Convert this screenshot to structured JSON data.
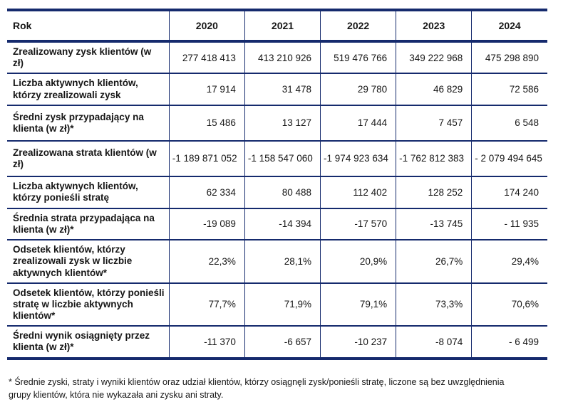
{
  "colors": {
    "table_border": "#152a6d",
    "text": "#161616",
    "background": "#ffffff"
  },
  "table": {
    "header": {
      "label": "Rok",
      "years": [
        "2020",
        "2021",
        "2022",
        "2023",
        "2024"
      ]
    },
    "rows": [
      {
        "label": "Zrealizowany zysk klientów (w zł)",
        "values": [
          "277 418 413",
          "413 210 926",
          "519 476 766",
          "349 222 968",
          "475 298 890"
        ]
      },
      {
        "label": "Liczba aktywnych klientów, którzy zrealizowali zysk",
        "values": [
          "17 914",
          "31 478",
          "29 780",
          "46 829",
          "72 586"
        ]
      },
      {
        "label": "Średni zysk przypadający na klienta (w zł)*",
        "values": [
          "15 486",
          "13 127",
          "17 444",
          "7 457",
          "6 548"
        ]
      },
      {
        "label": "Zrealizowana strata klientów (w zł)",
        "values": [
          "-1 189 871 052",
          "-1 158 547 060",
          "-1 974 923 634",
          "-1 762 812 383",
          "- 2 079 494 645"
        ]
      },
      {
        "label": "Liczba aktywnych klientów, którzy ponieśli stratę",
        "values": [
          "62 334",
          "80 488",
          "112 402",
          "128 252",
          "174 240"
        ]
      },
      {
        "label": "Średnia strata przypadająca na klienta (w zł)*",
        "values": [
          "-19 089",
          "-14 394",
          "-17 570",
          "-13 745",
          "- 11 935"
        ]
      },
      {
        "label": "Odsetek klientów, którzy zrealizowali zysk w liczbie aktywnych klientów*",
        "values": [
          "22,3%",
          "28,1%",
          "20,9%",
          "26,7%",
          "29,4%"
        ]
      },
      {
        "label": "Odsetek klientów, którzy ponieśli stratę w liczbie aktywnych klientów*",
        "values": [
          "77,7%",
          "71,9%",
          "79,1%",
          "73,3%",
          "70,6%"
        ]
      },
      {
        "label": "Średni wynik osiągnięty przez klienta (w zł)*",
        "values": [
          "-11 370",
          "-6 657",
          "-10 237",
          "-8 074",
          "- 6 499"
        ]
      }
    ]
  },
  "footnote": {
    "text": "* Średnie zyski, straty i wyniki klientów oraz udział klientów, którzy osiągnęli zysk/ponieśli stratę, liczone są bez uwzględnienia grupy klientów, która nie wykazała ani zysku ani straty."
  }
}
